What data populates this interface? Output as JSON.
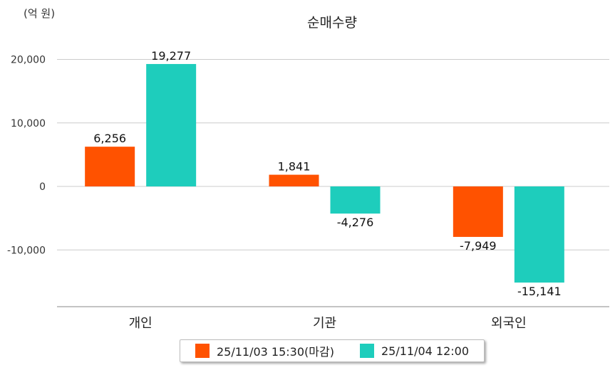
{
  "chart_data": {
    "type": "bar",
    "title": "순매수량",
    "unit_label": "(억 원)",
    "categories": [
      "개인",
      "기관",
      "외국인"
    ],
    "series": [
      {
        "name": "25/11/03 15:30(마감)",
        "color": "#ff5200",
        "values": [
          6256,
          1841,
          -7949
        ]
      },
      {
        "name": "25/11/04 12:00",
        "color": "#1ecdbc",
        "values": [
          19277,
          -4276,
          -15141
        ]
      }
    ],
    "data_labels": [
      [
        "6,256",
        "1,841",
        "-7,949"
      ],
      [
        "19,277",
        "-4,276",
        "-15,141"
      ]
    ],
    "y_ticks": [
      20000,
      10000,
      0,
      -10000
    ],
    "y_tick_labels": [
      "20,000",
      "10,000",
      "0",
      "-10,000"
    ],
    "ylim": [
      -18800,
      22000
    ],
    "grid": true,
    "legend_position": "bottom"
  }
}
